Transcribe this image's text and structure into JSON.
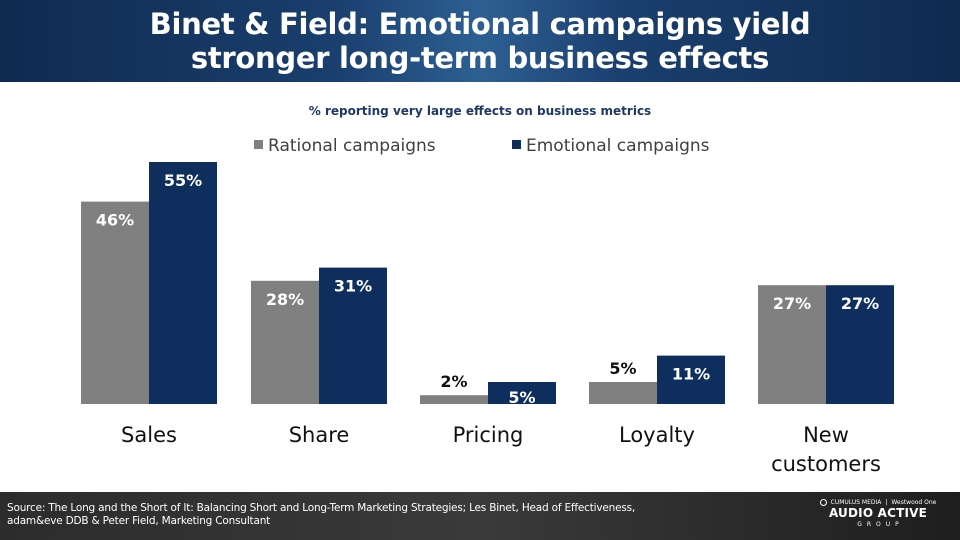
{
  "header": {
    "title_line1": "Binet & Field: Emotional campaigns yield",
    "title_line2": "stronger long-term business effects"
  },
  "colors": {
    "rational": "#808080",
    "emotional": "#0e2f5d",
    "header_bg": "#1a3f6e",
    "footer_bg": "#333333"
  },
  "chart_data": {
    "type": "bar",
    "subtitle": "% reporting very  large effects on business metrics",
    "categories": [
      [
        "Sales"
      ],
      [
        "Share"
      ],
      [
        "Pricing"
      ],
      [
        "Loyalty"
      ],
      [
        "New",
        "customers"
      ]
    ],
    "series": [
      {
        "name": "Rational campaigns",
        "values": [
          46,
          28,
          2,
          5,
          27
        ],
        "labels": [
          "46%",
          "28%",
          "2%",
          "5%",
          "27%"
        ],
        "color": "#808080"
      },
      {
        "name": "Emotional campaigns",
        "values": [
          55,
          31,
          5,
          11,
          27
        ],
        "labels": [
          "55%",
          "31%",
          "5%",
          "11%",
          "27%"
        ],
        "color": "#0e2f5d"
      }
    ],
    "ylim": [
      0,
      55
    ],
    "grid": false,
    "legend_position": "top"
  },
  "footer": {
    "source": "Source: The Long and the Short of It: Balancing Short and Long-Term Marketing Strategies; Les Binet, Head of Effectiveness, adam&eve DDB & Peter Field, Marketing Consultant",
    "logo_left": "CUMULUS MEDIA",
    "logo_right": "Westwood One",
    "logo_main": "AUDIO ACTIVE",
    "logo_sub": "GROUP"
  }
}
